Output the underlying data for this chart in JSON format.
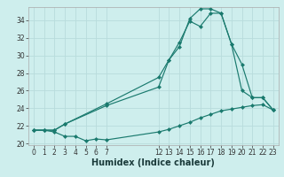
{
  "xlabel": "Humidex (Indice chaleur)",
  "bg_color": "#ceeeed",
  "grid_color": "#b8dcdc",
  "line_color": "#1a7a6e",
  "xlim": [
    -0.5,
    23.5
  ],
  "ylim": [
    19.8,
    35.5
  ],
  "yticks": [
    20,
    22,
    24,
    26,
    28,
    30,
    32,
    34
  ],
  "xticks": [
    0,
    1,
    2,
    3,
    4,
    5,
    6,
    7,
    12,
    13,
    14,
    15,
    16,
    17,
    18,
    19,
    20,
    21,
    22,
    23
  ],
  "line1_x": [
    0,
    1,
    2,
    3,
    4,
    5,
    6,
    7,
    12,
    13,
    14,
    15,
    16,
    17,
    18,
    19,
    20,
    21,
    22,
    23
  ],
  "line1_y": [
    21.5,
    21.5,
    21.3,
    20.8,
    20.8,
    20.3,
    20.5,
    20.4,
    21.3,
    21.6,
    22.0,
    22.4,
    22.9,
    23.3,
    23.7,
    23.9,
    24.1,
    24.3,
    24.4,
    23.8
  ],
  "line2_x": [
    0,
    1,
    2,
    3,
    7,
    12,
    13,
    14,
    15,
    16,
    17,
    18,
    19,
    20,
    21,
    22,
    23
  ],
  "line2_y": [
    21.5,
    21.5,
    21.5,
    22.2,
    24.3,
    26.4,
    29.5,
    31.5,
    33.9,
    33.3,
    34.8,
    34.8,
    31.3,
    29.0,
    25.2,
    25.2,
    23.8
  ],
  "line3_x": [
    0,
    1,
    2,
    3,
    7,
    12,
    13,
    14,
    15,
    16,
    17,
    18,
    19,
    20,
    21,
    22,
    23
  ],
  "line3_y": [
    21.5,
    21.5,
    21.5,
    22.2,
    24.5,
    27.5,
    29.5,
    31.0,
    34.2,
    35.3,
    35.3,
    34.8,
    31.3,
    26.0,
    25.2,
    25.2,
    23.8
  ],
  "tick_fontsize": 5.5,
  "xlabel_fontsize": 7
}
